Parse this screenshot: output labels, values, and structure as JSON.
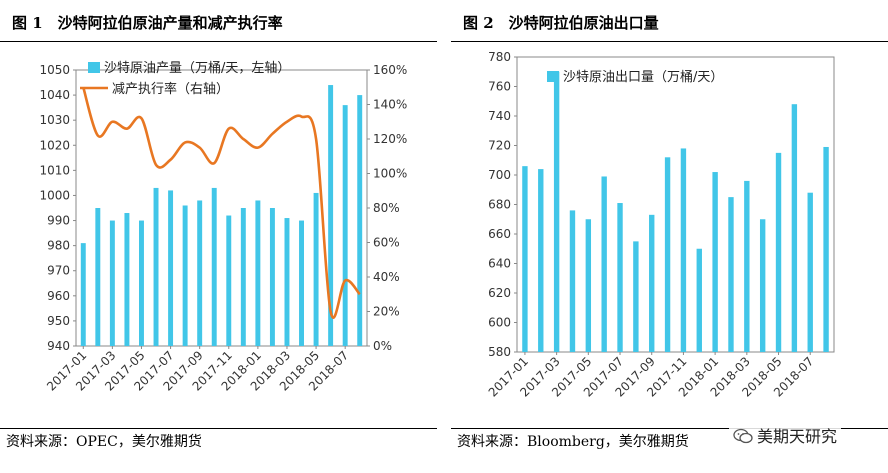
{
  "colors": {
    "bar": "#41C6E8",
    "line": "#E87722",
    "rule": "#000000"
  },
  "watermark": {
    "text": "美期天研究",
    "icon": "wechat-icon"
  },
  "chart_data": [
    {
      "type": "bar",
      "title": "图 1　沙特阿拉伯原油产量和减产执行率",
      "source": "资料来源：OPEC，美尔雅期货",
      "categories": [
        "2017-01",
        "2017-02",
        "2017-03",
        "2017-04",
        "2017-05",
        "2017-06",
        "2017-07",
        "2017-08",
        "2017-09",
        "2017-10",
        "2017-11",
        "2017-12",
        "2018-01",
        "2018-02",
        "2018-03",
        "2018-04",
        "2018-05",
        "2018-06",
        "2018-07",
        "2018-08"
      ],
      "xticks": [
        "2017-01",
        "2017-03",
        "2017-05",
        "2017-07",
        "2017-09",
        "2017-11",
        "2018-01",
        "2018-03",
        "2018-05",
        "2018-07"
      ],
      "ylim": [
        940,
        1050
      ],
      "yticks": [
        940,
        950,
        960,
        970,
        980,
        990,
        1000,
        1010,
        1020,
        1030,
        1040,
        1050
      ],
      "y2lim": [
        0,
        160
      ],
      "y2ticks": [
        "0%",
        "20%",
        "40%",
        "60%",
        "80%",
        "100%",
        "120%",
        "140%",
        "160%"
      ],
      "legend_position": "top-left",
      "series": [
        {
          "name": "沙特原油产量（万桶/天，左轴）",
          "type": "bar",
          "axis": "left",
          "values": [
            981,
            995,
            990,
            993,
            990,
            1003,
            1002,
            996,
            998,
            1003,
            992,
            995,
            998,
            995,
            991,
            990,
            1001,
            1044,
            1036,
            1040
          ]
        },
        {
          "name": "减产执行率（右轴）",
          "type": "line",
          "axis": "right",
          "smooth": true,
          "values": [
            150,
            122,
            130,
            126,
            132,
            105,
            108,
            118,
            115,
            106,
            126,
            120,
            115,
            123,
            130,
            133,
            120,
            20,
            38,
            30
          ]
        }
      ]
    },
    {
      "type": "bar",
      "title": "图 2　沙特阿拉伯原油出口量",
      "source": "资料来源：Bloomberg，美尔雅期货",
      "categories": [
        "2017-01",
        "2017-02",
        "2017-03",
        "2017-04",
        "2017-05",
        "2017-06",
        "2017-07",
        "2017-08",
        "2017-09",
        "2017-10",
        "2017-11",
        "2017-12",
        "2018-01",
        "2018-02",
        "2018-03",
        "2018-04",
        "2018-05",
        "2018-06",
        "2018-07",
        "2018-08"
      ],
      "xticks": [
        "2017-01",
        "2017-03",
        "2017-05",
        "2017-07",
        "2017-09",
        "2017-11",
        "2018-01",
        "2018-03",
        "2018-05",
        "2018-07"
      ],
      "ylim": [
        580,
        780
      ],
      "yticks": [
        580,
        600,
        620,
        640,
        660,
        680,
        700,
        720,
        740,
        760,
        780
      ],
      "legend_position": "top-left",
      "series": [
        {
          "name": "沙特原油出口量（万桶/天）",
          "type": "bar",
          "axis": "left",
          "values": [
            706,
            704,
            770,
            676,
            670,
            699,
            681,
            655,
            673,
            712,
            718,
            650,
            702,
            685,
            696,
            670,
            715,
            748,
            688,
            719
          ]
        }
      ]
    }
  ]
}
